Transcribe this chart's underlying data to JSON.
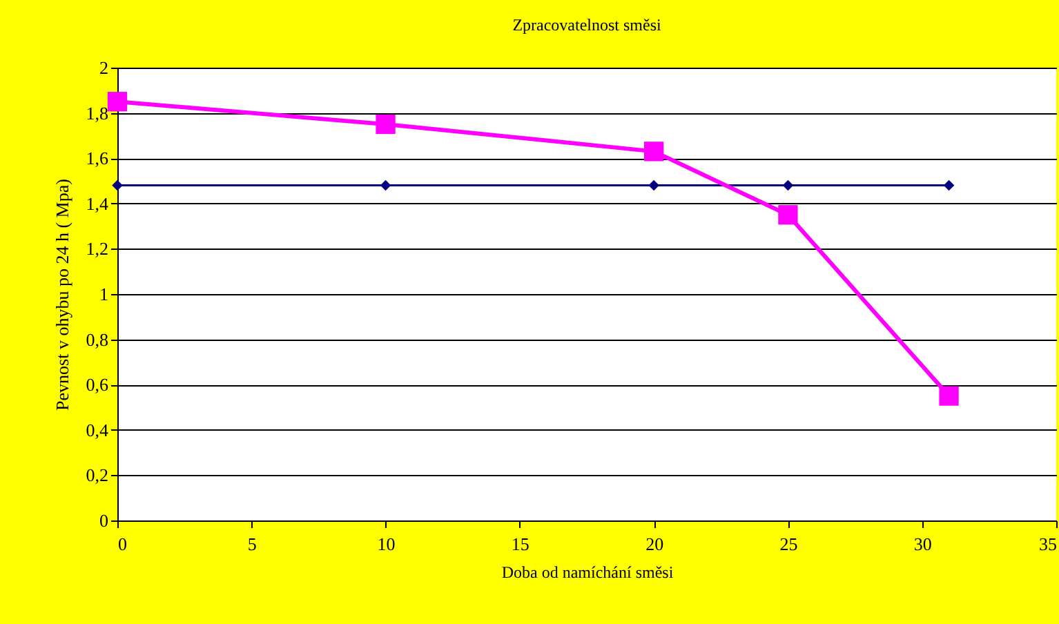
{
  "chart_data": {
    "type": "line",
    "title": "Zpracovatelnost směsi",
    "xlabel": "Doba od namíchání směsi",
    "ylabel": "Pevnost v ohybu po 24 h ( Mpa)",
    "x": [
      0,
      10,
      20,
      25,
      31
    ],
    "series": [
      {
        "color": "#000080",
        "marker": "diamond",
        "values": [
          1.48,
          1.48,
          1.48,
          1.48,
          1.48
        ]
      },
      {
        "color": "#ff00ff",
        "marker": "square",
        "values": [
          1.85,
          1.75,
          1.63,
          1.35,
          0.55
        ]
      }
    ],
    "xlim": [
      0,
      35
    ],
    "xticks": [
      0,
      5,
      10,
      15,
      20,
      25,
      30,
      35
    ],
    "ylim": [
      0,
      2
    ],
    "yticks": [
      0,
      {
        "value": 0.2,
        "label": "0,2"
      },
      {
        "value": 0.4,
        "label": "0,4"
      },
      {
        "value": 0.6,
        "label": "0,6"
      },
      {
        "value": 0.8,
        "label": "0,8"
      },
      1,
      {
        "value": 1.2,
        "label": "1,2"
      },
      {
        "value": 1.4,
        "label": "1,4"
      },
      {
        "value": 1.6,
        "label": "1,6"
      },
      {
        "value": 1.8,
        "label": "1,8"
      },
      2
    ],
    "grid": "y"
  }
}
